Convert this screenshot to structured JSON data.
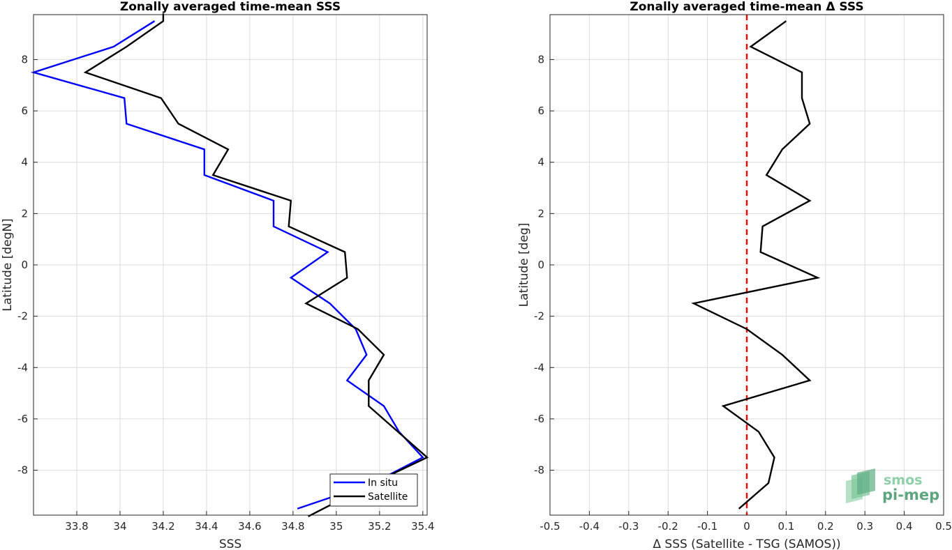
{
  "chart_data": [
    {
      "type": "line",
      "title": "Zonally averaged time-mean SSS",
      "xlabel": "SSS",
      "ylabel": "Latitude [degN]",
      "xlim": [
        33.6,
        35.42
      ],
      "ylim": [
        -9.75,
        9.75
      ],
      "xticks": [
        33.8,
        34,
        34.2,
        34.4,
        34.6,
        34.8,
        35,
        35.2,
        35.4
      ],
      "xtick_labels": [
        "33.8",
        "34",
        "34.2",
        "34.4",
        "34.6",
        "34.8",
        "35",
        "35.2",
        "35.4"
      ],
      "yticks": [
        8,
        6,
        4,
        2,
        0,
        -2,
        -4,
        -6,
        -8
      ],
      "ytick_labels": [
        "8",
        "6",
        "4",
        "2",
        "0",
        "-2",
        "-4",
        "-6",
        "-8"
      ],
      "grid": true,
      "legend_position": "bottom-right",
      "series": [
        {
          "name": "In situ",
          "color": "#0000ff",
          "x": [
            34.16,
            33.97,
            33.6,
            34.02,
            34.03,
            34.39,
            34.39,
            34.71,
            34.71,
            34.96,
            34.79,
            34.97,
            35.09,
            35.14,
            35.05,
            35.22,
            35.29,
            35.4,
            35.17,
            34.82
          ],
          "y": [
            9.5,
            8.5,
            7.5,
            6.5,
            5.5,
            4.5,
            3.5,
            2.5,
            1.5,
            0.5,
            -0.5,
            -1.5,
            -2.5,
            -3.5,
            -4.5,
            -5.5,
            -6.5,
            -7.5,
            -8.5,
            -9.5
          ]
        },
        {
          "name": "Satellite",
          "color": "#000000",
          "x": [
            34.2,
            34.2,
            34.03,
            33.84,
            34.19,
            34.27,
            34.5,
            34.43,
            34.79,
            34.78,
            35.04,
            35.05,
            34.86,
            35.1,
            35.22,
            35.15,
            35.15,
            35.42,
            35.17,
            34.87
          ],
          "y": [
            9.8,
            9.5,
            8.5,
            7.5,
            6.5,
            5.5,
            4.5,
            3.5,
            2.5,
            1.5,
            0.5,
            -0.5,
            -1.5,
            -2.5,
            -3.5,
            -4.5,
            -5.5,
            -7.5,
            -8.5,
            -9.8
          ]
        }
      ]
    },
    {
      "type": "line",
      "title": "Zonally averaged time-mean Δ SSS",
      "xlabel": "Δ SSS (Satellite - TSG (SAMOS))",
      "ylabel": "Latitude [deg]",
      "xlim": [
        -0.5,
        0.5
      ],
      "ylim": [
        -9.75,
        9.75
      ],
      "xticks": [
        -0.5,
        -0.4,
        -0.3,
        -0.2,
        -0.1,
        0,
        0.1,
        0.2,
        0.3,
        0.4,
        0.5
      ],
      "xtick_labels": [
        "-0.5",
        "-0.4",
        "-0.3",
        "-0.2",
        "-0.1",
        "0",
        "0.1",
        "0.2",
        "0.3",
        "0.4",
        "0.5"
      ],
      "yticks": [
        8,
        6,
        4,
        2,
        0,
        -2,
        -4,
        -6,
        -8
      ],
      "ytick_labels": [
        "8",
        "6",
        "4",
        "2",
        "0",
        "-2",
        "-4",
        "-6",
        "-8"
      ],
      "grid": true,
      "reference_line": {
        "x": 0,
        "color": "#ff0000",
        "style": "dashed"
      },
      "series": [
        {
          "color": "#000000",
          "x": [
            0.1,
            0.01,
            0.14,
            0.14,
            0.16,
            0.09,
            0.05,
            0.16,
            0.04,
            0.035,
            0.18,
            -0.135,
            0.0,
            0.09,
            0.16,
            -0.06,
            0.03,
            0.07,
            0.055,
            -0.02
          ],
          "y": [
            9.5,
            8.5,
            7.5,
            6.5,
            5.5,
            4.5,
            3.5,
            2.5,
            1.5,
            0.5,
            -0.5,
            -1.5,
            -2.5,
            -3.5,
            -4.5,
            -5.5,
            -6.5,
            -7.5,
            -8.5,
            -9.5
          ]
        }
      ]
    }
  ],
  "logo": {
    "line1": "smos",
    "line2": "pi-mep"
  }
}
